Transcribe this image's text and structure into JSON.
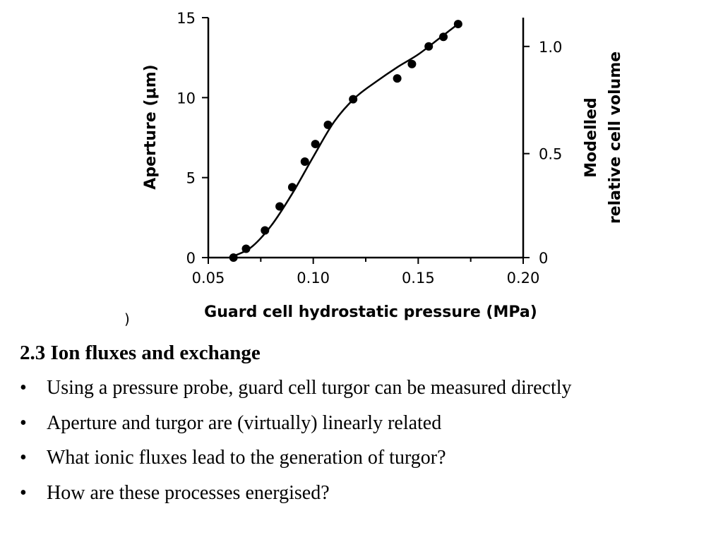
{
  "chart_data": {
    "type": "scatter",
    "x_axis": {
      "label": "Guard cell hydrostatic pressure (MPa)",
      "range": [
        0.05,
        0.2
      ],
      "ticks": [
        "0.05",
        "0.10",
        "0.15",
        "0.20"
      ]
    },
    "y_axis_left": {
      "label": "Aperture (μm)",
      "range": [
        0,
        15
      ],
      "ticks": [
        "0",
        "5",
        "10",
        "15"
      ]
    },
    "y_axis_right": {
      "label_line1": "Modelled",
      "label_line2": "relative cell volume",
      "ticks": [
        "0",
        "0.5",
        "1.0"
      ],
      "tick_positions_in_left_units": [
        0,
        6.5,
        13.2
      ]
    },
    "points": [
      {
        "x": 0.062,
        "y": 0.0
      },
      {
        "x": 0.068,
        "y": 0.55
      },
      {
        "x": 0.077,
        "y": 1.7
      },
      {
        "x": 0.084,
        "y": 3.2
      },
      {
        "x": 0.09,
        "y": 4.4
      },
      {
        "x": 0.096,
        "y": 6.0
      },
      {
        "x": 0.101,
        "y": 7.1
      },
      {
        "x": 0.107,
        "y": 8.3
      },
      {
        "x": 0.119,
        "y": 9.9
      },
      {
        "x": 0.14,
        "y": 11.2
      },
      {
        "x": 0.147,
        "y": 12.1
      },
      {
        "x": 0.155,
        "y": 13.2
      },
      {
        "x": 0.162,
        "y": 13.8
      },
      {
        "x": 0.169,
        "y": 14.6
      }
    ],
    "fit_line": [
      {
        "x": 0.06,
        "y": 0.0
      },
      {
        "x": 0.07,
        "y": 0.6
      },
      {
        "x": 0.08,
        "y": 2.0
      },
      {
        "x": 0.09,
        "y": 4.0
      },
      {
        "x": 0.1,
        "y": 6.3
      },
      {
        "x": 0.11,
        "y": 8.5
      },
      {
        "x": 0.12,
        "y": 10.0
      },
      {
        "x": 0.13,
        "y": 11.0
      },
      {
        "x": 0.14,
        "y": 11.9
      },
      {
        "x": 0.15,
        "y": 12.7
      },
      {
        "x": 0.16,
        "y": 13.7
      },
      {
        "x": 0.17,
        "y": 14.7
      }
    ],
    "grid": false,
    "stray_mark": ")"
  },
  "slide": {
    "heading": "2.3 Ion fluxes and exchange",
    "bullet_glyph": "•",
    "bullets": [
      "Using a pressure probe, guard cell turgor can be measured directly",
      "Aperture and turgor are (virtually) linearly related",
      "What ionic fluxes lead to the generation of turgor?",
      "How are these processes energised?"
    ]
  }
}
